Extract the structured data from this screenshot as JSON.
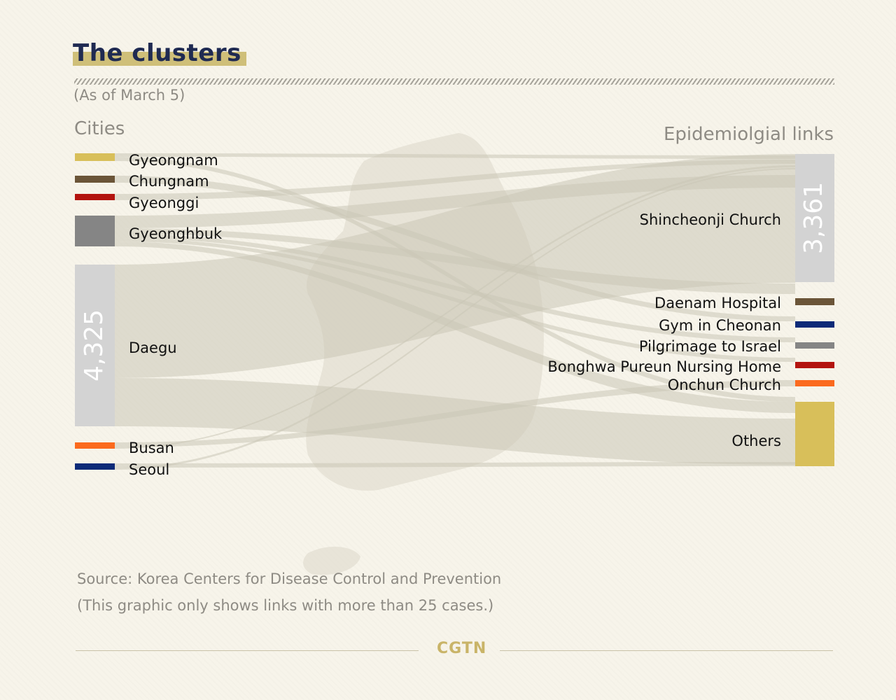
{
  "title": "The clusters",
  "subtitle": "(As of March 5)",
  "left_header": "Cities",
  "right_header": "Epidemiolgial links",
  "source": "Source: Korea Centers for Disease Control and Prevention",
  "note": "(This graphic only shows links with more than 25 cases.)",
  "logo": "CGTN",
  "chart_data": {
    "type": "sankey",
    "sources": [
      {
        "name": "Gyeongnam",
        "color": "#d8bf5a"
      },
      {
        "name": "Chungnam",
        "color": "#6b5538"
      },
      {
        "name": "Gyeonggi",
        "color": "#b3140f"
      },
      {
        "name": "Gyeonghbuk",
        "color": "#858585"
      },
      {
        "name": "Daegu",
        "color": "#d3d3d3",
        "value": 4325,
        "value_label": "4,325"
      },
      {
        "name": "Busan",
        "color": "#fb6a1e"
      },
      {
        "name": "Seoul",
        "color": "#0c2a78"
      }
    ],
    "targets": [
      {
        "name": "Shincheonji Church",
        "color": "#d3d3d3",
        "value": 3361,
        "value_label": "3,361"
      },
      {
        "name": "Daenam Hospital",
        "color": "#6b5538"
      },
      {
        "name": "Gym in Cheonan",
        "color": "#0c2a78"
      },
      {
        "name": "Pilgrimage to Israel",
        "color": "#858585"
      },
      {
        "name": "Bonghwa Pureun Nursing Home",
        "color": "#b3140f"
      },
      {
        "name": "Onchun Church",
        "color": "#fb6a1e"
      },
      {
        "name": "Others",
        "color": "#d8bf5a"
      }
    ],
    "links": [
      {
        "source": "Daegu",
        "target": "Shincheonji Church"
      },
      {
        "source": "Daegu",
        "target": "Others"
      },
      {
        "source": "Gyeonghbuk",
        "target": "Shincheonji Church"
      },
      {
        "source": "Gyeonghbuk",
        "target": "Daenam Hospital"
      },
      {
        "source": "Gyeonghbuk",
        "target": "Pilgrimage to Israel"
      },
      {
        "source": "Gyeonghbuk",
        "target": "Bonghwa Pureun Nursing Home"
      },
      {
        "source": "Gyeonghbuk",
        "target": "Others"
      },
      {
        "source": "Gyeongnam",
        "target": "Shincheonji Church"
      },
      {
        "source": "Gyeongnam",
        "target": "Others"
      },
      {
        "source": "Chungnam",
        "target": "Gym in Cheonan"
      },
      {
        "source": "Gyeonggi",
        "target": "Shincheonji Church"
      },
      {
        "source": "Busan",
        "target": "Onchun Church"
      },
      {
        "source": "Busan",
        "target": "Shincheonji Church"
      },
      {
        "source": "Seoul",
        "target": "Others"
      },
      {
        "source": "Seoul",
        "target": "Shincheonji Church"
      }
    ]
  }
}
